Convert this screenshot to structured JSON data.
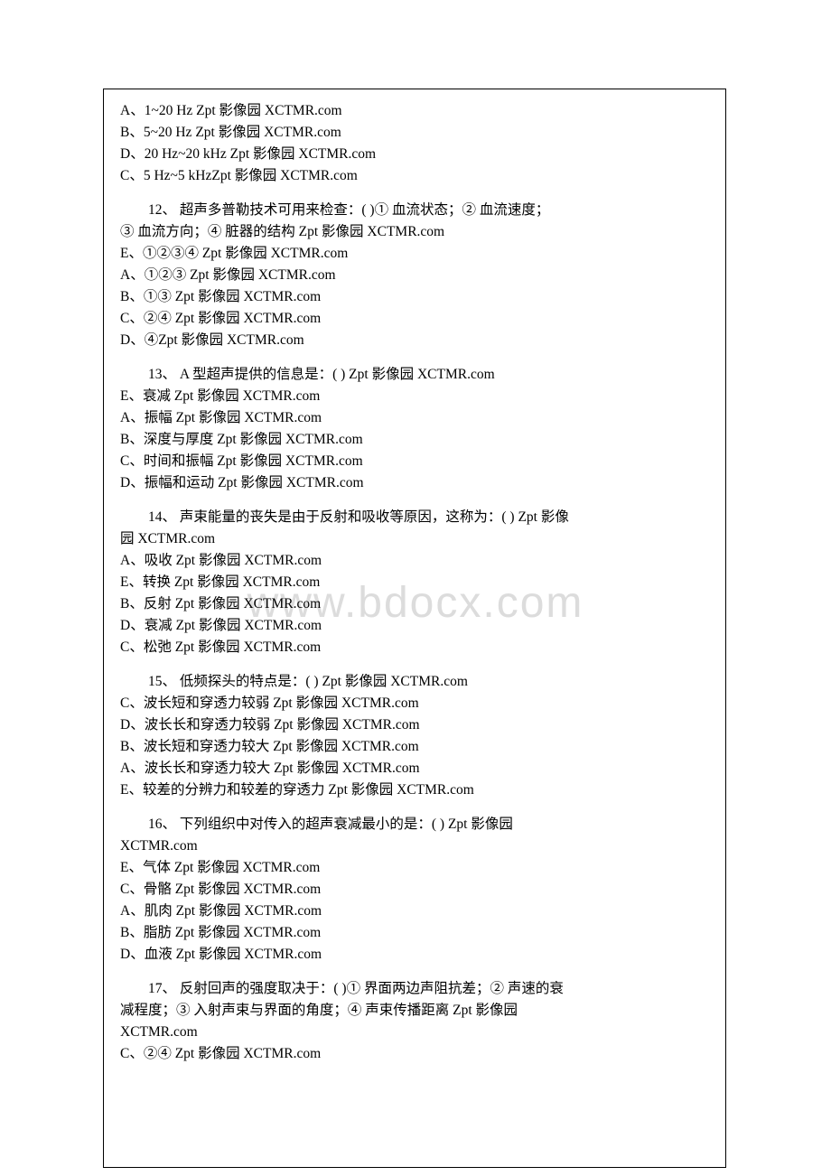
{
  "watermark": "www.bdocx.com",
  "suffix": "Zpt 影像园 XCTMR.com",
  "q11": {
    "options": [
      "A、1~20 Hz",
      "B、5~20 Hz",
      "D、20 Hz~20 kHz",
      "C、5 Hz~5 kHz"
    ]
  },
  "q12": {
    "question_p1": "12、 超声多普勒技术可用来检查：( )① 血流状态；② 血流速度；",
    "question_p2": "③ 血流方向；④ 脏器的结构",
    "options": [
      "E、①②③④",
      "A、①②③",
      "B、①③",
      "C、②④",
      "D、④"
    ]
  },
  "q13": {
    "question": "13、 A 型超声提供的信息是：( )",
    "options": [
      "E、衰减",
      "A、振幅",
      "B、深度与厚度",
      "C、时间和振幅",
      "D、振幅和运动"
    ]
  },
  "q14": {
    "question_p1": "14、 声束能量的丧失是由于反射和吸收等原因，这称为：( )",
    "question_p2": "园 XCTMR.com",
    "options": [
      "A、吸收",
      "E、转换",
      "B、反射",
      "D、衰减",
      "C、松弛"
    ]
  },
  "q15": {
    "question": "15、 低频探头的特点是：( )",
    "options": [
      "C、波长短和穿透力较弱",
      "D、波长长和穿透力较弱",
      "B、波长短和穿透力较大",
      "A、波长长和穿透力较大",
      "E、较差的分辨力和较差的穿透力"
    ]
  },
  "q16": {
    "question_p1": "16、 下列组织中对传入的超声衰减最小的是：( )",
    "question_p2": "XCTMR.com",
    "options": [
      "E、气体",
      "C、骨骼",
      "A、肌肉",
      "B、脂肪",
      "D、血液"
    ]
  },
  "q17": {
    "question_p1": "17、 反射回声的强度取决于：( )① 界面两边声阻抗差；② 声速的衰",
    "question_p2": "减程度；③ 入射声束与界面的角度；④ 声束传播距离",
    "question_p3": "XCTMR.com",
    "options": [
      "C、②④"
    ]
  }
}
